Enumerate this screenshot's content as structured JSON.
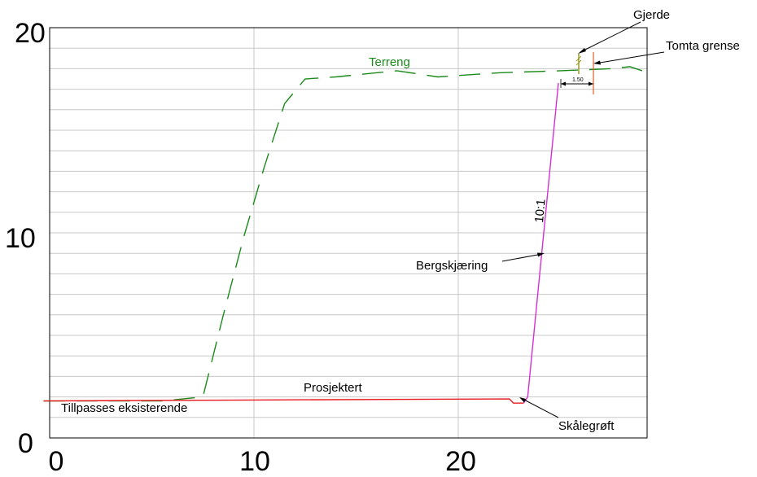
{
  "chart_data": {
    "type": "line",
    "x_ticks": [
      "0",
      "10",
      "20"
    ],
    "y_ticks": [
      "0",
      "10",
      "20"
    ],
    "xlim": [
      0,
      29
    ],
    "ylim": [
      0,
      20
    ],
    "grid": true,
    "series": [
      {
        "name": "Terreng",
        "color": "#1a8a1a",
        "style": "dashed",
        "x": [
          -0.3,
          5.5,
          7.5,
          8.5,
          9.5,
          10.5,
          11.5,
          12.5,
          14,
          17,
          19,
          22,
          25,
          27.5,
          28.4,
          29
        ],
        "y": [
          1.8,
          1.8,
          2.0,
          6.0,
          9.8,
          13.2,
          16.3,
          17.5,
          17.6,
          17.9,
          17.6,
          17.8,
          17.9,
          18.0,
          18.1,
          17.9
        ]
      },
      {
        "name": "Prosjektert",
        "color": "#e8171e",
        "style": "solid",
        "x": [
          -0.3,
          10,
          22.5,
          22.7,
          23.2
        ],
        "y": [
          1.8,
          1.85,
          1.9,
          1.7,
          1.7
        ]
      },
      {
        "name": "Bergskjæring",
        "color": "#d52fd5",
        "style": "solid",
        "x": [
          23.2,
          23.4,
          24.9
        ],
        "y": [
          1.7,
          2.0,
          17.3
        ]
      }
    ],
    "labels": {
      "terreng": "Terreng",
      "prosjektert": "Prosjektert",
      "tillpasses": "Tillpasses eksisterende",
      "bergskjaering": "Bergskjæring",
      "slope": "10:1",
      "skalegroft": "Skålegrøft",
      "gjerde": "Gjerde",
      "tomta_grense": "Tomta grense",
      "dimension": "1.50"
    },
    "colors": {
      "fence": "#9a9a28",
      "boundary": "#f05a20",
      "grid": "#c8c8c8"
    }
  }
}
